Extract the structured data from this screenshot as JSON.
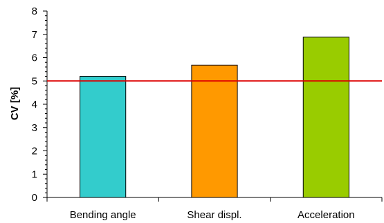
{
  "chart_data": {
    "type": "bar",
    "title": "",
    "xlabel": "",
    "ylabel": "CV [%]",
    "categories": [
      "Bending angle",
      "Shear displ.",
      "Acceleration"
    ],
    "values": [
      5.2,
      5.68,
      6.88
    ],
    "bar_colors": [
      "#33cccc",
      "#ff9900",
      "#99cc00"
    ],
    "ylim": [
      0,
      8
    ],
    "yticks": [
      "0",
      "1",
      "2",
      "3",
      "4",
      "5",
      "6",
      "7",
      "8"
    ],
    "minor_ticks_per_major": 5,
    "reference_line": {
      "value": 5,
      "color": "#dd0000"
    },
    "grid": false,
    "legend": "none"
  }
}
